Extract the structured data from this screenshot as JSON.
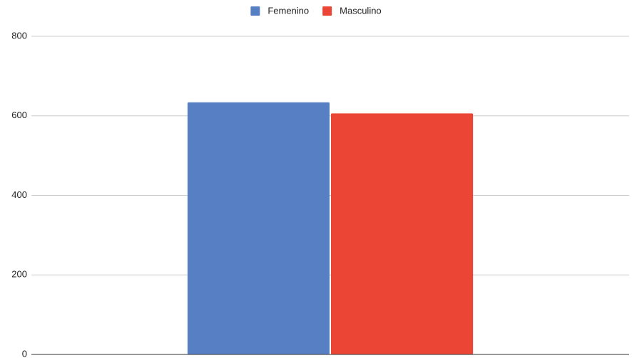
{
  "chart_data": {
    "type": "bar",
    "categories": [
      null
    ],
    "series": [
      {
        "name": "Femenino",
        "color": "#5780c4",
        "values": [
          634
        ]
      },
      {
        "name": "Masculino",
        "color": "#ea4535",
        "values": [
          606
        ]
      }
    ],
    "ylim": [
      0,
      800
    ],
    "yticks": [
      0,
      200,
      400,
      600,
      800
    ],
    "grid": true,
    "legend": "top"
  }
}
